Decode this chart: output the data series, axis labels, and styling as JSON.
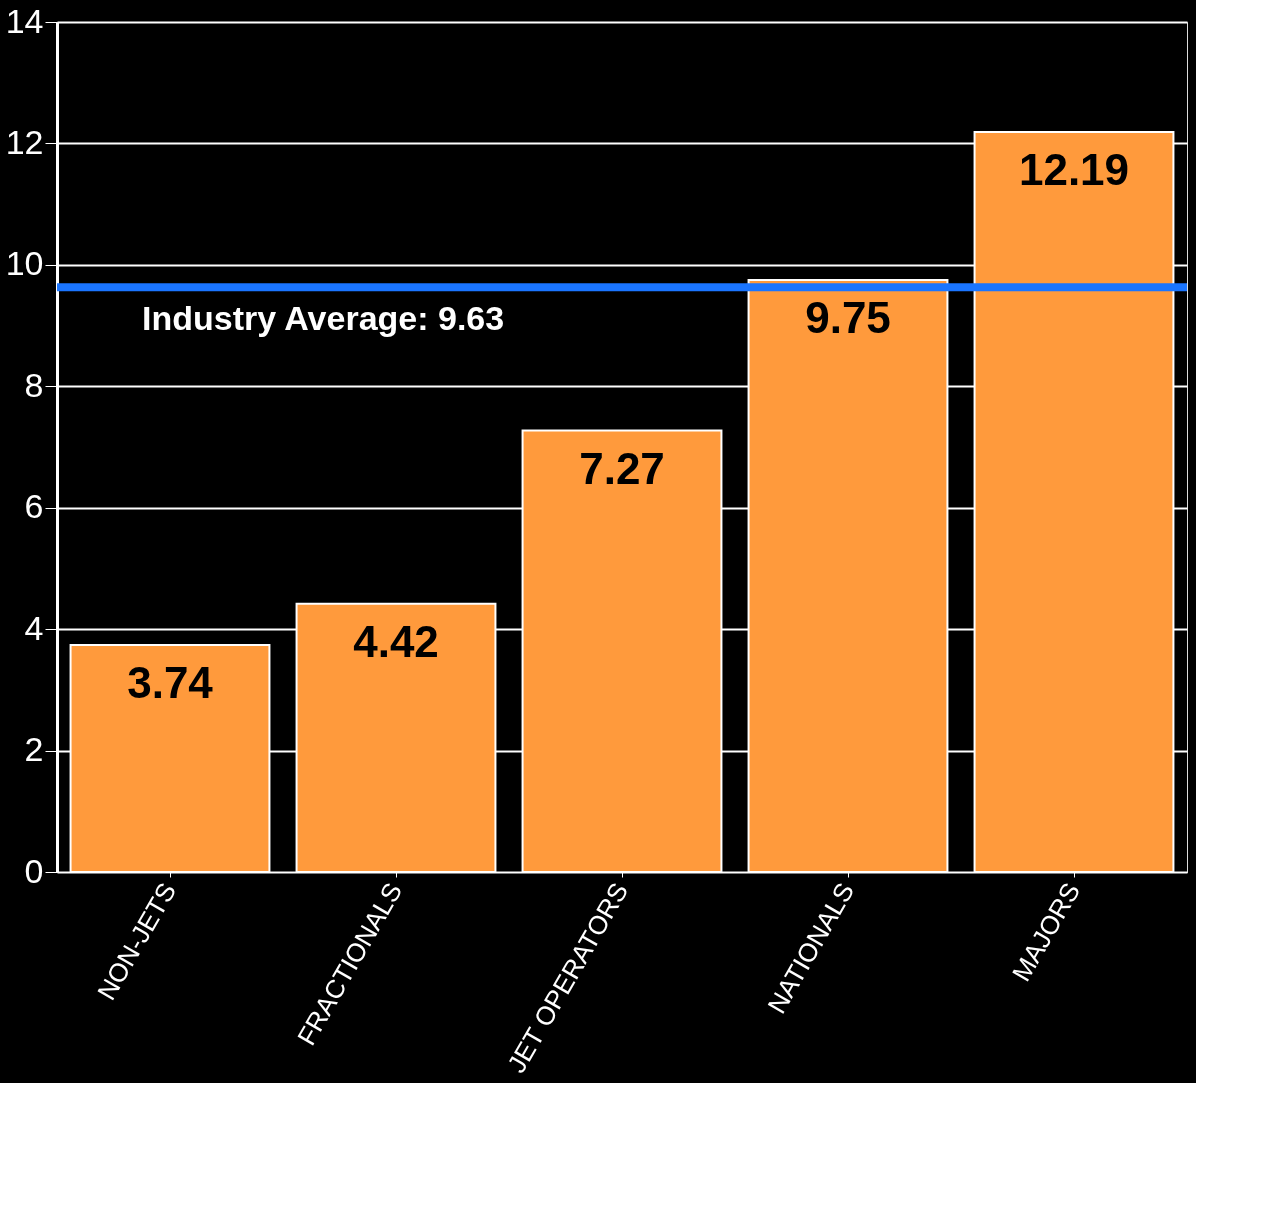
{
  "chart_data": {
    "type": "bar",
    "categories": [
      "NON-JETS",
      "FRACTIONALS",
      "JET OPERATORS",
      "NATIONALS",
      "MAJORS"
    ],
    "values": [
      3.74,
      4.42,
      7.27,
      9.75,
      12.19
    ],
    "color": "#ff9a3c",
    "ylim": [
      0,
      14
    ],
    "yticks": [
      0,
      2,
      4,
      6,
      8,
      10,
      12,
      14
    ],
    "grid": "y",
    "data_labels": true,
    "ref_lines": [
      {
        "axis": "y",
        "value": 9.63,
        "label": "Industry Average: 9.63",
        "color": "#1a75ff"
      }
    ]
  }
}
